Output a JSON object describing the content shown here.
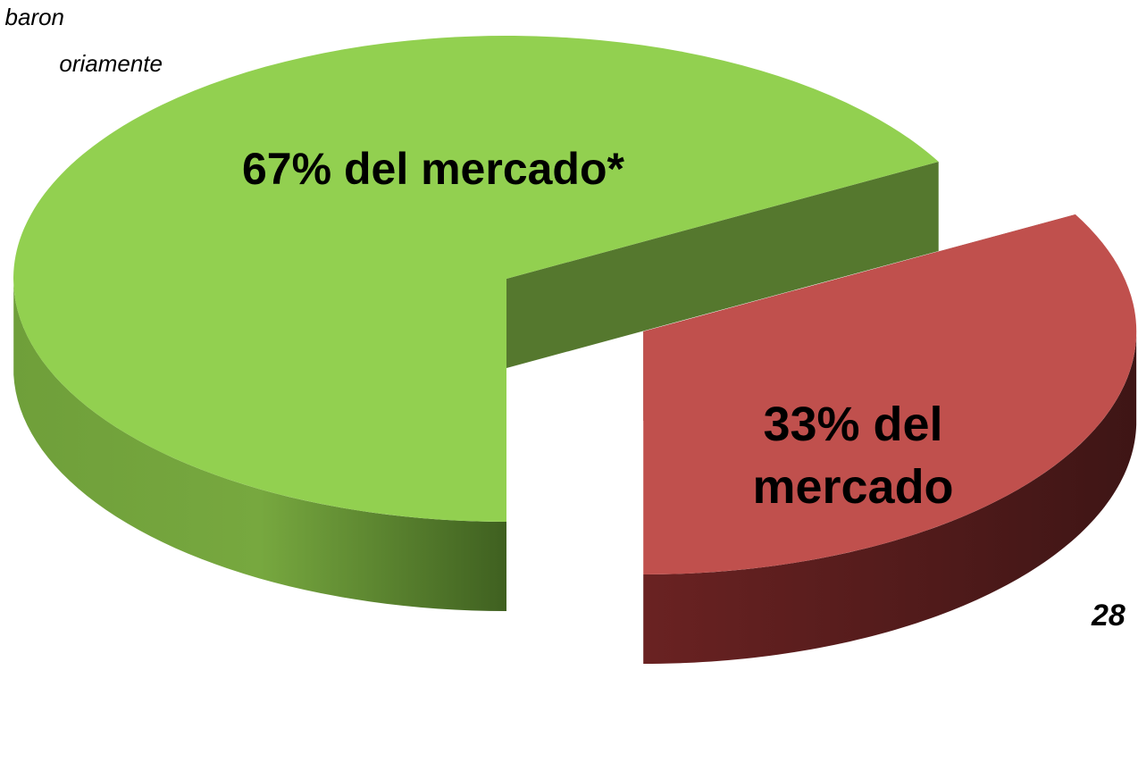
{
  "chart_data": {
    "type": "pie3d",
    "categories": [
      "67% del mercado*",
      "33% del mercado"
    ],
    "values": [
      67,
      33
    ],
    "value_labels": [
      "67% del mercado*",
      "33% del mercado"
    ],
    "colors": [
      "#92d050",
      "#c0504d"
    ],
    "annotations": [
      "baron",
      "oriamente",
      "28"
    ]
  }
}
